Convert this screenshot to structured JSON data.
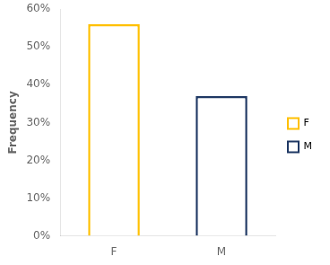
{
  "chart_data": {
    "type": "bar",
    "categories": [
      "F",
      "M"
    ],
    "values": [
      0.56,
      0.37
    ],
    "colors": [
      "#FFC000",
      "#1F3864"
    ],
    "ylabel": "Frequency",
    "ylim": [
      0,
      0.6
    ],
    "yticks": [
      {
        "value": 0.0,
        "label": "0%"
      },
      {
        "value": 0.1,
        "label": "10%"
      },
      {
        "value": 0.2,
        "label": "20%"
      },
      {
        "value": 0.3,
        "label": "30%"
      },
      {
        "value": 0.4,
        "label": "40%"
      },
      {
        "value": 0.5,
        "label": "50%"
      },
      {
        "value": 0.6,
        "label": "60%"
      }
    ],
    "grid": false,
    "legend": "right"
  }
}
